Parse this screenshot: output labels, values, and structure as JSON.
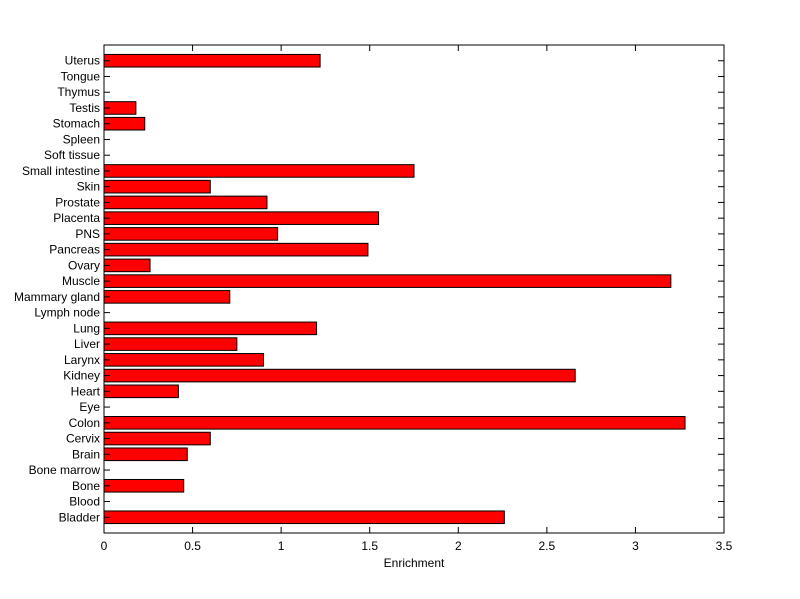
{
  "chart_data": {
    "type": "bar",
    "orientation": "horizontal",
    "categories": [
      "Bladder",
      "Blood",
      "Bone",
      "Bone marrow",
      "Brain",
      "Cervix",
      "Colon",
      "Eye",
      "Heart",
      "Kidney",
      "Larynx",
      "Liver",
      "Lung",
      "Lymph node",
      "Mammary gland",
      "Muscle",
      "Ovary",
      "Pancreas",
      "PNS",
      "Placenta",
      "Prostate",
      "Skin",
      "Small intestine",
      "Soft tissue",
      "Spleen",
      "Stomach",
      "Testis",
      "Thymus",
      "Tongue",
      "Uterus"
    ],
    "values": [
      2.26,
      0,
      0.45,
      0,
      0.47,
      0.6,
      3.28,
      0,
      0.42,
      2.66,
      0.9,
      0.75,
      1.2,
      0,
      0.71,
      3.2,
      0.26,
      1.49,
      0.98,
      1.55,
      0.92,
      0.6,
      1.75,
      0,
      0,
      0.23,
      0.18,
      0,
      0,
      1.22
    ],
    "xlabel": "Enrichment",
    "ylabel": "",
    "title": "",
    "xlim": [
      0,
      3.5
    ],
    "xticks": [
      "0",
      "0.5",
      "1",
      "1.5",
      "2",
      "2.5",
      "3",
      "3.5"
    ],
    "grid": false,
    "colors": {
      "bar": "#ff0000",
      "edge": "#000000"
    }
  }
}
